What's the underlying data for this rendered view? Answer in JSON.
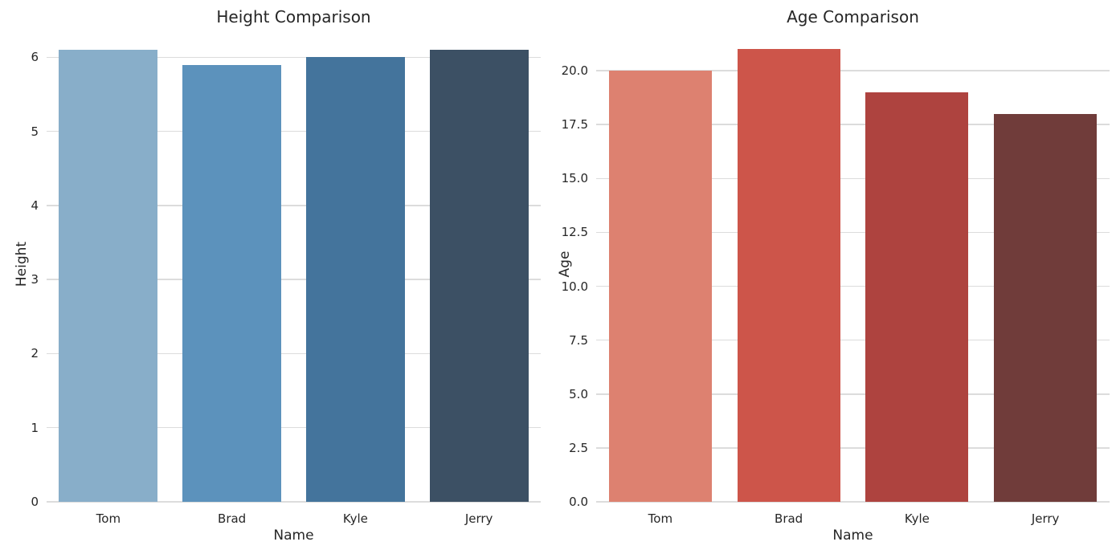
{
  "figure": {
    "background_color": "#ffffff",
    "text_color": "#262626",
    "grid_color": "#dcdcdc"
  },
  "chart_data": [
    {
      "type": "bar",
      "title": "Height Comparison",
      "xlabel": "Name",
      "ylabel": "Height",
      "categories": [
        "Tom",
        "Brad",
        "Kyle",
        "Jerry"
      ],
      "values": [
        6.1,
        5.9,
        6.0,
        6.1
      ],
      "bar_colors": [
        "#88AEC9",
        "#5C92BC",
        "#44749C",
        "#3C5064"
      ],
      "ylim": [
        0,
        6.405
      ],
      "yticks": [
        0,
        1,
        2,
        3,
        4,
        5,
        6
      ],
      "ytick_labels": [
        "0",
        "1",
        "2",
        "3",
        "4",
        "5",
        "6"
      ],
      "grid": true,
      "legend": null,
      "bar_width_fraction": 0.8
    },
    {
      "type": "bar",
      "title": "Age Comparison",
      "xlabel": "Name",
      "ylabel": "Age",
      "categories": [
        "Tom",
        "Brad",
        "Kyle",
        "Jerry"
      ],
      "values": [
        20,
        21,
        19,
        18
      ],
      "bar_colors": [
        "#DD8170",
        "#CD554A",
        "#AE433F",
        "#703C3A"
      ],
      "ylim": [
        0,
        22.05
      ],
      "yticks": [
        0,
        2.5,
        5,
        7.5,
        10,
        12.5,
        15,
        17.5,
        20
      ],
      "ytick_labels": [
        "0.0",
        "2.5",
        "5.0",
        "7.5",
        "10.0",
        "12.5",
        "15.0",
        "17.5",
        "20.0"
      ],
      "grid": true,
      "legend": null,
      "bar_width_fraction": 0.8
    }
  ]
}
